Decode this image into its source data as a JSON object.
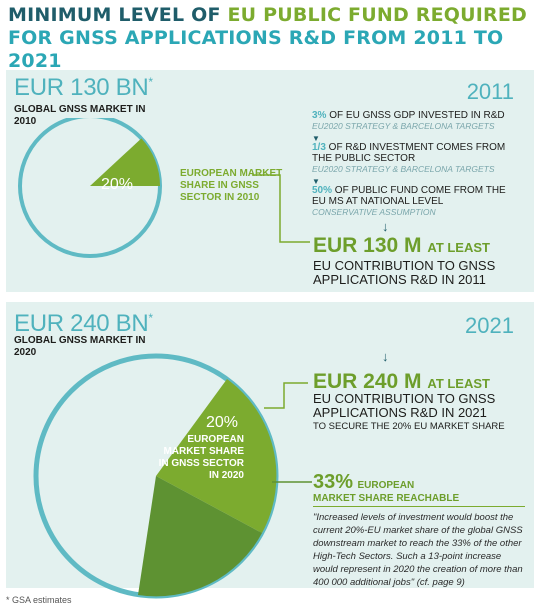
{
  "title": {
    "line1_part1": "Minimum level of",
    "line1_part2": "EU public fund required",
    "line2": "for GNSS applications R&D from 2011 to 2021"
  },
  "panel_2011": {
    "market_value": "EUR 130 BN",
    "asterisk": "*",
    "market_label": "Global GNSS market in 2010",
    "share_percent": "20%",
    "share_label": "European market share in GNSS sector in 2010",
    "year": "2011",
    "steps": [
      {
        "highlight": "3%",
        "text": " of EU GNSS GDP invested in R&D",
        "note": "EU2020 strategy & Barcelona targets"
      },
      {
        "highlight": "1/3",
        "text": " of R&D investment comes from the public sector",
        "note": "EU2020 strategy & Barcelona targets"
      },
      {
        "highlight": "50%",
        "text": " of public fund come from the EU MS at national level",
        "note": "Conservative assumption"
      }
    ],
    "result_amount": "EUR 130 M",
    "result_suffix": "at least",
    "result_text": "EU contribution to GNSS applications R&D in 2011"
  },
  "panel_2021": {
    "market_value": "EUR 240 BN",
    "asterisk": "*",
    "market_label": "Global GNSS market in 2020",
    "share_percent": "20%",
    "share_label": "European market share in GNSS sector in 2020",
    "year": "2021",
    "result_amount": "EUR 240 M",
    "result_suffix": "at least",
    "result_text": "EU contribution to GNSS applications R&D in 2021",
    "result_sub": "to secure the 20% EU market share",
    "reach_percent": "33%",
    "reach_label1": "European",
    "reach_label2": "market share reachable",
    "quote": "\"Increased levels of investment would boost the current 20%-EU market share of the global GNSS downstream market to reach the 33% of the other High-Tech Sectors. Such a 13-point increase would represent in 2020 the creation of more than 400 000 additional jobs\" (cf. page 9)"
  },
  "footnote": "* GSA estimates",
  "colors": {
    "teal": "#4fb2bd",
    "dark_teal": "#1f5d6a",
    "green": "#7cab2f",
    "dark_green": "#5e9232",
    "panel": "#e3f1ef"
  }
}
